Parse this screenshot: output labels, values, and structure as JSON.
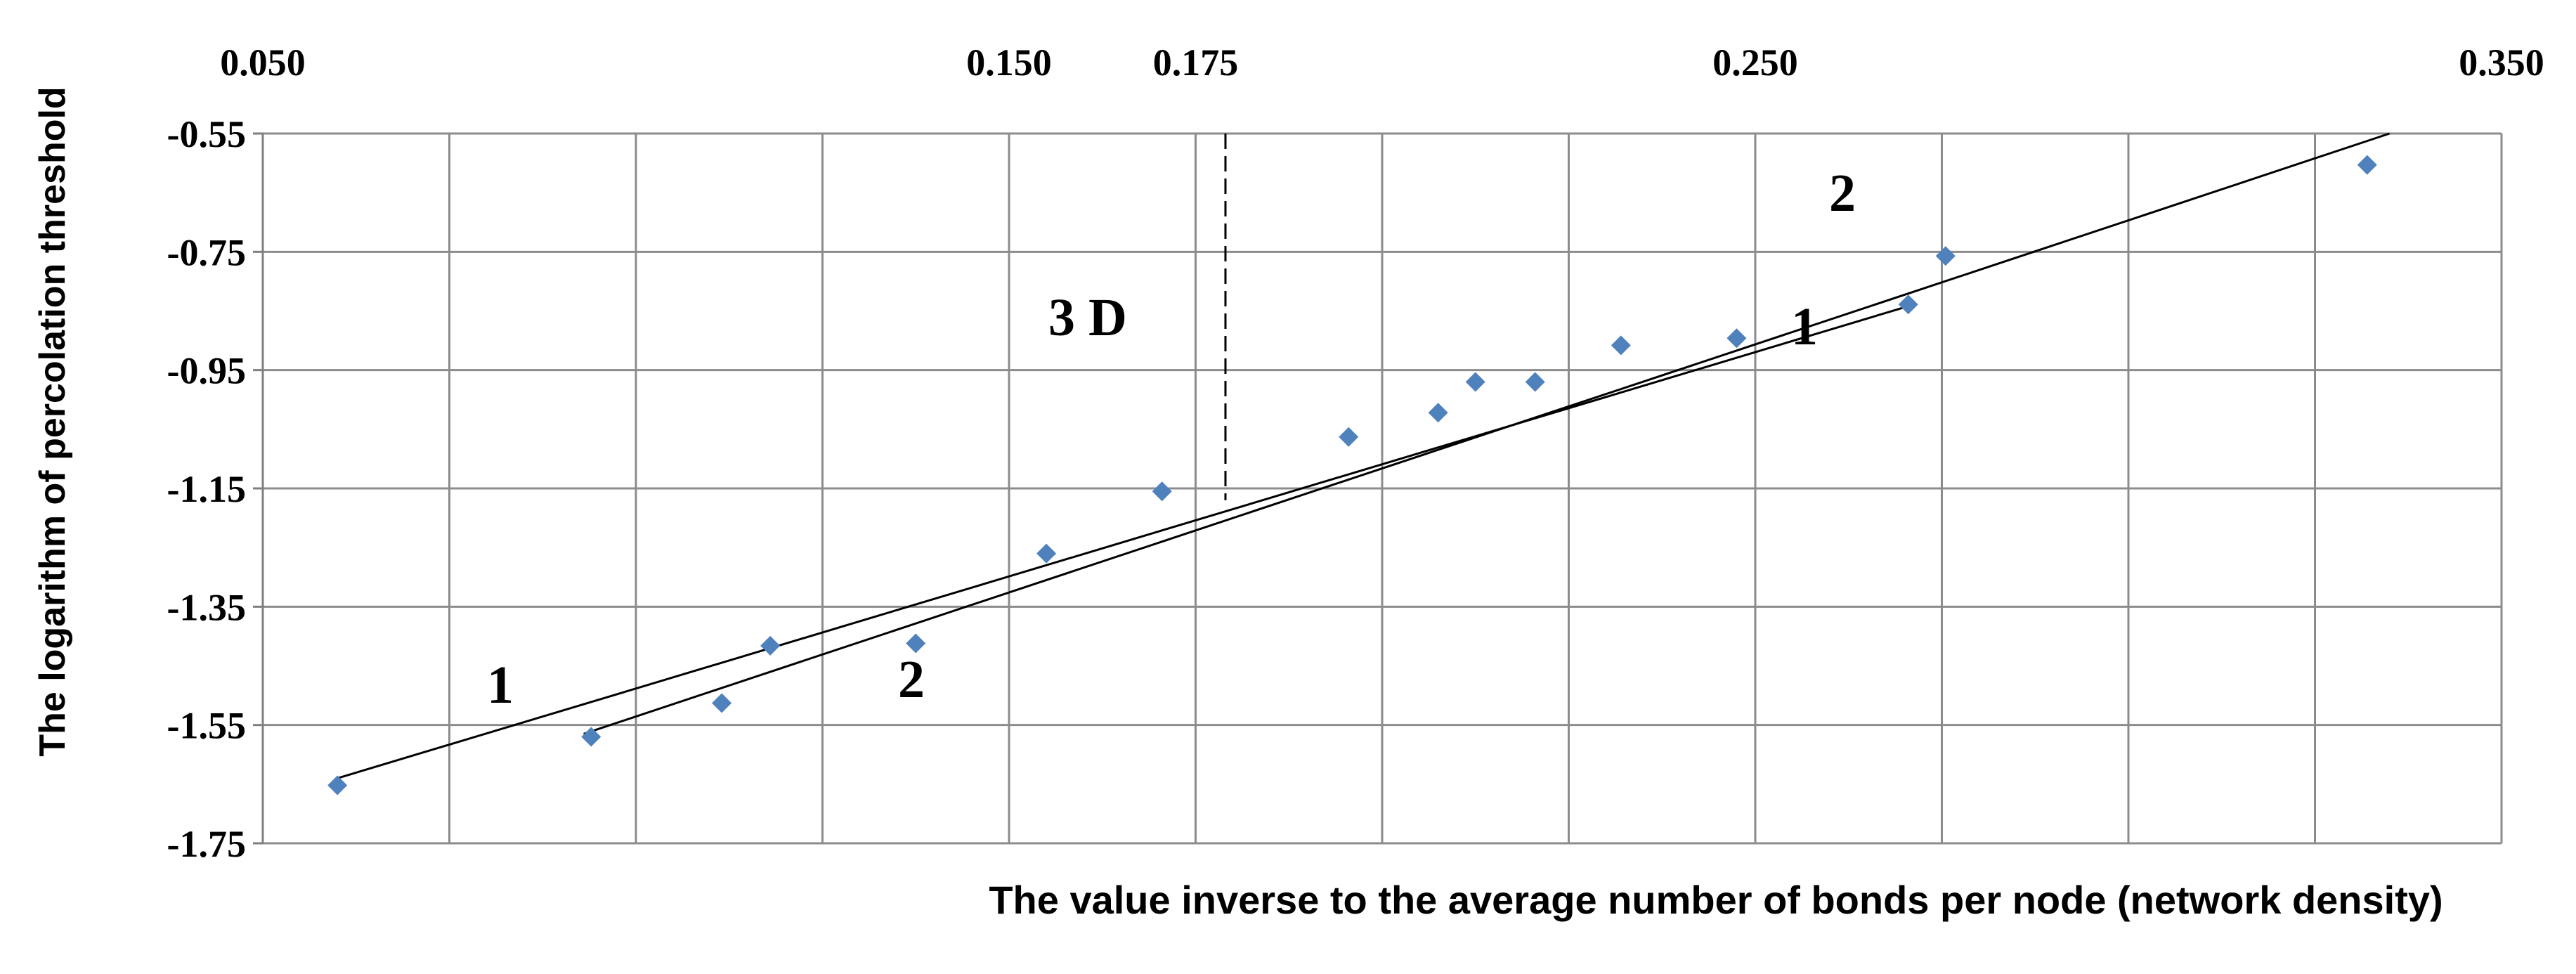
{
  "chart_data": {
    "type": "scatter",
    "title": "",
    "xlabel": "The value inverse to the average number of bonds per node (network density)",
    "ylabel": "The logarithm of percolation threshold",
    "xlim": [
      0.05,
      0.35
    ],
    "ylim": [
      -1.75,
      -0.55
    ],
    "x_tick_labels": [
      "0.050",
      "0.150",
      "0.175",
      "0.250",
      "0.350"
    ],
    "y_tick_labels": [
      "-0.55",
      "-0.75",
      "-0.95",
      "-1.15",
      "-1.35",
      "-1.55",
      "-1.75"
    ],
    "grid": true,
    "marker_color": "#4f81bd",
    "series": [
      {
        "marker": "diamond",
        "points": [
          {
            "x": 0.06,
            "y": -1.652
          },
          {
            "x": 0.094,
            "y": -1.57
          },
          {
            "x": 0.1115,
            "y": -1.513
          },
          {
            "x": 0.118,
            "y": -1.416
          },
          {
            "x": 0.1375,
            "y": -1.412
          },
          {
            "x": 0.155,
            "y": -1.26
          },
          {
            "x": 0.1705,
            "y": -1.155
          },
          {
            "x": 0.1955,
            "y": -1.063
          },
          {
            "x": 0.2075,
            "y": -1.022
          },
          {
            "x": 0.2125,
            "y": -0.97
          },
          {
            "x": 0.2205,
            "y": -0.97
          },
          {
            "x": 0.232,
            "y": -0.908
          },
          {
            "x": 0.2475,
            "y": -0.896
          },
          {
            "x": 0.2705,
            "y": -0.839
          },
          {
            "x": 0.2755,
            "y": -0.757
          },
          {
            "x": 0.332,
            "y": -0.603
          }
        ]
      }
    ],
    "fit_lines": [
      {
        "label": "1",
        "x": [
          0.06,
          0.271
        ],
        "y": [
          -1.64,
          -0.84
        ]
      },
      {
        "label": "2",
        "x": [
          0.093,
          0.335
        ],
        "y": [
          -1.565,
          -0.55
        ]
      }
    ],
    "annotations": {
      "line1_left": "1",
      "line1_right": "1",
      "line2_left": "2",
      "line2_right": "2",
      "dimension": "3 D"
    },
    "reference_line": {
      "x": 0.179,
      "y_from": -1.17,
      "y_to": -0.55
    }
  }
}
